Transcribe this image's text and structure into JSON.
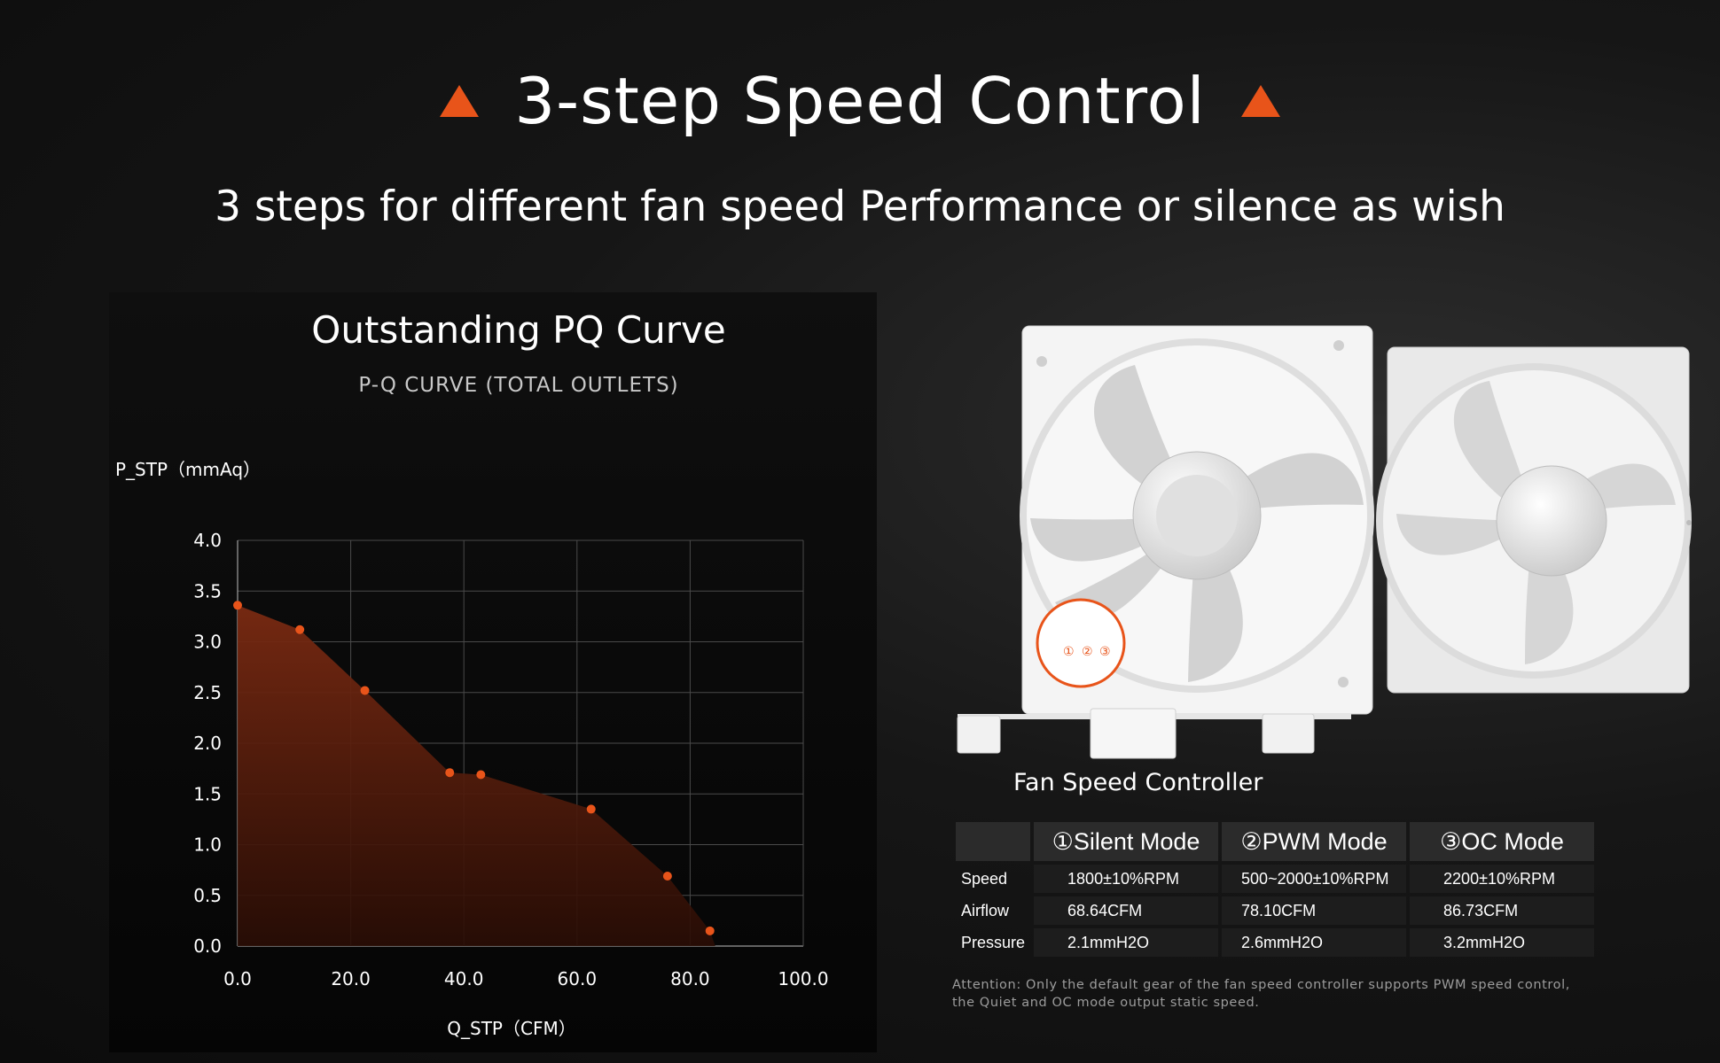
{
  "header": {
    "title": "3-step Speed Control",
    "subtitle": "3 steps for different fan speed Performance or silence as wish",
    "accent_color": "#e8541a"
  },
  "chart_heading": {
    "title": "Outstanding PQ Curve",
    "subtitle": "P-Q CURVE (TOTAL OUTLETS)"
  },
  "chart_data": {
    "type": "area",
    "title": "P-Q CURVE (TOTAL OUTLETS)",
    "xlabel": "Q_STP（CFM）",
    "ylabel": "P_STP（mmAq）",
    "xlim": [
      0,
      100
    ],
    "ylim": [
      0,
      4
    ],
    "xticks": [
      "0.0",
      "20.0",
      "40.0",
      "60.0",
      "80.0",
      "100.0"
    ],
    "yticks": [
      "0.0",
      "0.5",
      "1.0",
      "1.5",
      "2.0",
      "2.5",
      "3.0",
      "3.5",
      "4.0"
    ],
    "grid": true,
    "series": [
      {
        "x": [
          0,
          11,
          22.5,
          37.5,
          43,
          62.5,
          76,
          83.5
        ],
        "y": [
          3.36,
          3.12,
          2.52,
          1.71,
          1.69,
          1.35,
          0.69,
          0.15
        ],
        "color": "#e8541a"
      }
    ]
  },
  "fan_image": {
    "controller_marks": [
      "①",
      "②",
      "③"
    ]
  },
  "controller_label": "Fan Speed Controller",
  "spec_table": {
    "headers": [
      "",
      "①Silent Mode",
      "②PWM Mode",
      "③OC Mode"
    ],
    "rows": [
      [
        "Speed",
        "1800±10%RPM",
        "500~2000±10%RPM",
        "2200±10%RPM"
      ],
      [
        "Airflow",
        "68.64CFM",
        "78.10CFM",
        "86.73CFM"
      ],
      [
        "Pressure",
        "2.1mmH2O",
        "2.6mmH2O",
        "3.2mmH2O"
      ]
    ]
  },
  "attention": "Attention: Only the default gear of the fan speed controller supports PWM speed control, the Quiet and OC mode output static speed."
}
